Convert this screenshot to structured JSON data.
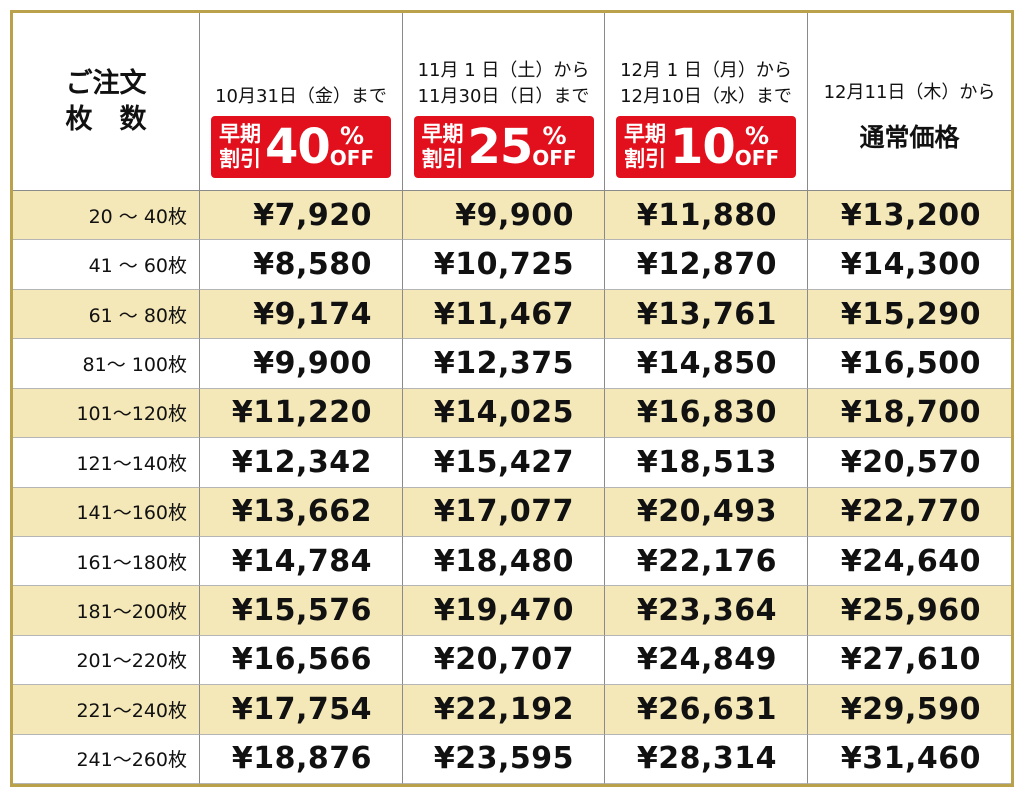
{
  "table": {
    "header": {
      "corner": [
        "ご注文",
        "枚　数"
      ],
      "columns": [
        {
          "dates": [
            "10月31日（金）まで"
          ],
          "badge": {
            "label": [
              "早期",
              "割引"
            ],
            "rate": "40",
            "unit": "%",
            "off": "OFF"
          }
        },
        {
          "dates": [
            "11月 1 日（土）から",
            "11月30日（日）まで"
          ],
          "badge": {
            "label": [
              "早期",
              "割引"
            ],
            "rate": "25",
            "unit": "%",
            "off": "OFF"
          }
        },
        {
          "dates": [
            "12月 1 日（月）から",
            "12月10日（水）まで"
          ],
          "badge": {
            "label": [
              "早期",
              "割引"
            ],
            "rate": "10",
            "unit": "%",
            "off": "OFF"
          }
        },
        {
          "dates": [
            "12月11日（木）から"
          ],
          "note": "通常価格"
        }
      ]
    },
    "rows": [
      {
        "label": "20 ～ 40枚",
        "prices": [
          "¥7,920",
          "¥9,900",
          "¥11,880",
          "¥13,200"
        ]
      },
      {
        "label": "41 ～ 60枚",
        "prices": [
          "¥8,580",
          "¥10,725",
          "¥12,870",
          "¥14,300"
        ]
      },
      {
        "label": "61 ～ 80枚",
        "prices": [
          "¥9,174",
          "¥11,467",
          "¥13,761",
          "¥15,290"
        ]
      },
      {
        "label": "81～ 100枚",
        "prices": [
          "¥9,900",
          "¥12,375",
          "¥14,850",
          "¥16,500"
        ]
      },
      {
        "label": "101～120枚",
        "prices": [
          "¥11,220",
          "¥14,025",
          "¥16,830",
          "¥18,700"
        ]
      },
      {
        "label": "121～140枚",
        "prices": [
          "¥12,342",
          "¥15,427",
          "¥18,513",
          "¥20,570"
        ]
      },
      {
        "label": "141～160枚",
        "prices": [
          "¥13,662",
          "¥17,077",
          "¥20,493",
          "¥22,770"
        ]
      },
      {
        "label": "161～180枚",
        "prices": [
          "¥14,784",
          "¥18,480",
          "¥22,176",
          "¥24,640"
        ]
      },
      {
        "label": "181～200枚",
        "prices": [
          "¥15,576",
          "¥19,470",
          "¥23,364",
          "¥25,960"
        ]
      },
      {
        "label": "201～220枚",
        "prices": [
          "¥16,566",
          "¥20,707",
          "¥24,849",
          "¥27,610"
        ]
      },
      {
        "label": "221～240枚",
        "prices": [
          "¥17,754",
          "¥22,192",
          "¥26,631",
          "¥29,590"
        ]
      },
      {
        "label": "241～260枚",
        "prices": [
          "¥18,876",
          "¥23,595",
          "¥28,314",
          "¥31,460"
        ]
      }
    ]
  }
}
